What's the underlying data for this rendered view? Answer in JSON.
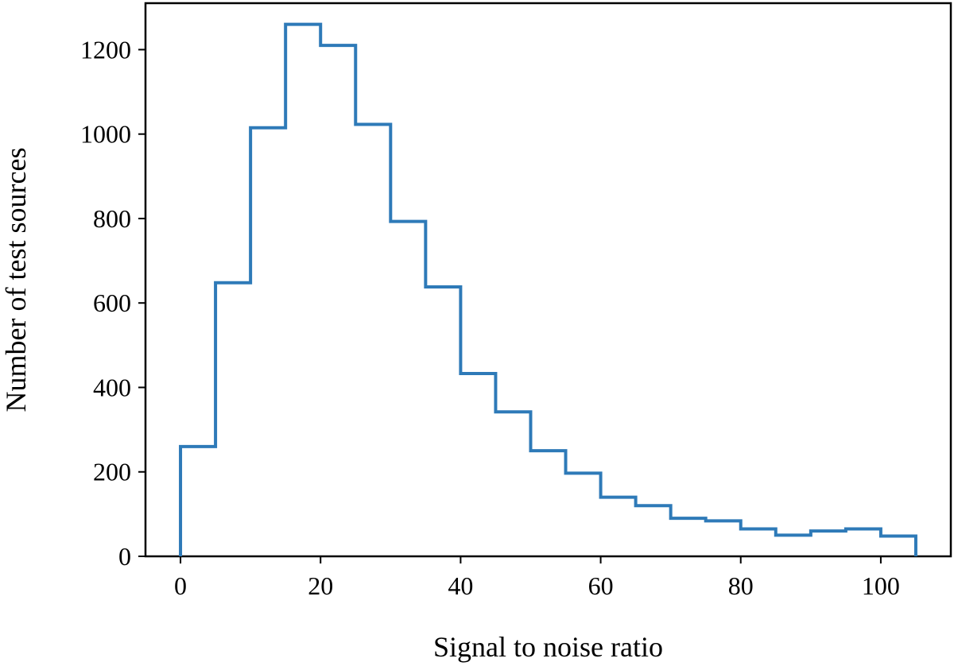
{
  "chart_data": {
    "type": "histogram",
    "title": "",
    "xlabel": "Signal to noise ratio",
    "ylabel": "Number of test sources",
    "bin_edges": [
      0,
      5,
      10,
      15,
      20,
      25,
      30,
      35,
      40,
      45,
      50,
      55,
      60,
      65,
      70,
      75,
      80,
      85,
      90,
      95,
      100,
      105
    ],
    "values": [
      260,
      648,
      1015,
      1260,
      1210,
      1023,
      793,
      638,
      433,
      342,
      250,
      197,
      140,
      120,
      90,
      84,
      65,
      50,
      60,
      65,
      48
    ],
    "xlim": [
      -5,
      110
    ],
    "ylim": [
      0,
      1310
    ],
    "xticks": [
      0,
      20,
      40,
      60,
      80,
      100
    ],
    "yticks": [
      0,
      200,
      400,
      600,
      800,
      1000,
      1200
    ],
    "line_color": "#2e7ab8",
    "grid": false,
    "legend": "none",
    "histtype": "step"
  }
}
